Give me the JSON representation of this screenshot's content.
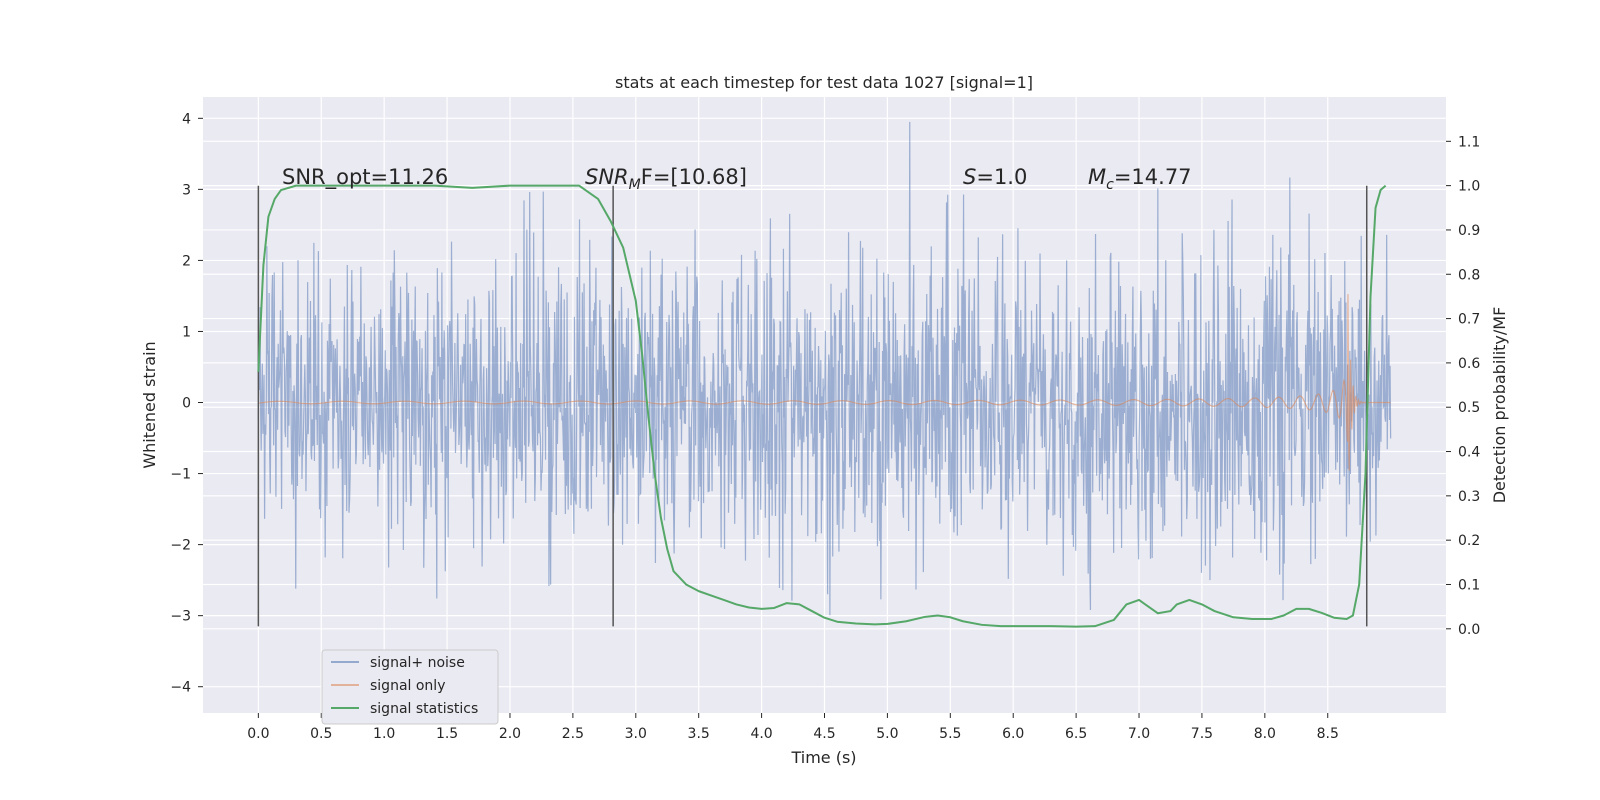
{
  "chart_data": {
    "type": "line",
    "title": "stats at each timestep for test data 1027 [signal=1]",
    "xlabel": "Time (s)",
    "ylabel": "Whitened strain",
    "y2label": "Detection probability/MF",
    "xlim": [
      -0.44,
      9.44
    ],
    "ylim": [
      -4.37,
      4.3
    ],
    "y2lim": [
      -0.19,
      1.2
    ],
    "xticks": [
      "0.0",
      "0.5",
      "1.0",
      "1.5",
      "2.0",
      "2.5",
      "3.0",
      "3.5",
      "4.0",
      "4.5",
      "5.0",
      "5.5",
      "6.0",
      "6.5",
      "7.0",
      "7.5",
      "8.0",
      "8.5"
    ],
    "yticks": [
      "4",
      "3",
      "2",
      "1",
      "0",
      "−1",
      "−2",
      "−3",
      "−4"
    ],
    "y2ticks": [
      "1.1",
      "1.0",
      "0.9",
      "0.8",
      "0.7",
      "0.6",
      "0.5",
      "0.4",
      "0.3",
      "0.2",
      "0.1",
      "0.0"
    ],
    "annotations": {
      "snr_opt": "SNR_opt=11.26",
      "snr_mf_sym": "SNR",
      "snr_mf_sub": "M",
      "snr_mf_rest": "F=[10.68]",
      "s_sym": "S",
      "s_rest": "=1.0",
      "mc_sym": "M",
      "mc_sub": "c",
      "mc_rest": "=14.77"
    },
    "vertical_markers": [
      0.0,
      2.82,
      8.81
    ],
    "series": [
      {
        "name": "signal+ noise",
        "color": "#4c72b0",
        "description": "whitened strain noise, roughly gaussian, range about -4 to 4, t from 0 to 9 s"
      },
      {
        "name": "signal only",
        "color": "#dd8452",
        "description": "chirp waveform growing in amplitude, peaking near t = 8.65 s"
      },
      {
        "name": "signal statistics",
        "color": "#55a868",
        "axis": "right",
        "points": [
          [
            0.0,
            0.58
          ],
          [
            0.04,
            0.82
          ],
          [
            0.08,
            0.93
          ],
          [
            0.13,
            0.97
          ],
          [
            0.18,
            0.99
          ],
          [
            0.3,
            1.0
          ],
          [
            0.6,
            1.0
          ],
          [
            1.0,
            1.0
          ],
          [
            1.4,
            1.0
          ],
          [
            1.7,
            0.995
          ],
          [
            2.0,
            1.0
          ],
          [
            2.3,
            1.0
          ],
          [
            2.55,
            1.0
          ],
          [
            2.7,
            0.97
          ],
          [
            2.8,
            0.92
          ],
          [
            2.9,
            0.86
          ],
          [
            3.0,
            0.74
          ],
          [
            3.05,
            0.62
          ],
          [
            3.1,
            0.48
          ],
          [
            3.15,
            0.35
          ],
          [
            3.2,
            0.25
          ],
          [
            3.25,
            0.18
          ],
          [
            3.3,
            0.13
          ],
          [
            3.4,
            0.1
          ],
          [
            3.5,
            0.085
          ],
          [
            3.6,
            0.075
          ],
          [
            3.7,
            0.065
          ],
          [
            3.8,
            0.055
          ],
          [
            3.9,
            0.048
          ],
          [
            4.0,
            0.045
          ],
          [
            4.1,
            0.047
          ],
          [
            4.2,
            0.058
          ],
          [
            4.3,
            0.055
          ],
          [
            4.4,
            0.04
          ],
          [
            4.5,
            0.025
          ],
          [
            4.6,
            0.016
          ],
          [
            4.75,
            0.012
          ],
          [
            4.9,
            0.01
          ],
          [
            5.0,
            0.011
          ],
          [
            5.15,
            0.017
          ],
          [
            5.3,
            0.027
          ],
          [
            5.4,
            0.03
          ],
          [
            5.5,
            0.026
          ],
          [
            5.6,
            0.017
          ],
          [
            5.75,
            0.009
          ],
          [
            5.9,
            0.006
          ],
          [
            6.1,
            0.006
          ],
          [
            6.3,
            0.006
          ],
          [
            6.5,
            0.005
          ],
          [
            6.65,
            0.006
          ],
          [
            6.8,
            0.02
          ],
          [
            6.9,
            0.055
          ],
          [
            7.0,
            0.065
          ],
          [
            7.05,
            0.055
          ],
          [
            7.15,
            0.035
          ],
          [
            7.25,
            0.04
          ],
          [
            7.3,
            0.055
          ],
          [
            7.4,
            0.065
          ],
          [
            7.5,
            0.055
          ],
          [
            7.6,
            0.04
          ],
          [
            7.75,
            0.026
          ],
          [
            7.9,
            0.022
          ],
          [
            8.05,
            0.022
          ],
          [
            8.15,
            0.03
          ],
          [
            8.25,
            0.045
          ],
          [
            8.35,
            0.045
          ],
          [
            8.45,
            0.036
          ],
          [
            8.55,
            0.025
          ],
          [
            8.65,
            0.022
          ],
          [
            8.7,
            0.03
          ],
          [
            8.75,
            0.1
          ],
          [
            8.8,
            0.35
          ],
          [
            8.84,
            0.75
          ],
          [
            8.88,
            0.95
          ],
          [
            8.92,
            0.99
          ],
          [
            8.96,
            1.0
          ]
        ]
      }
    ],
    "legend_position": "lower left",
    "grid": true
  }
}
